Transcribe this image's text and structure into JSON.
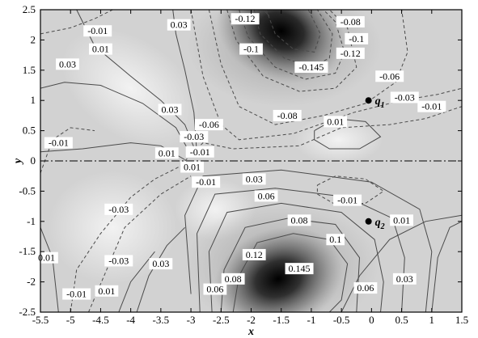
{
  "chart_data": {
    "type": "contour",
    "xlabel": "x",
    "ylabel": "y",
    "xlim": [
      -5.5,
      1.5
    ],
    "ylim": [
      -2.5,
      2.5
    ],
    "xticks": [
      "-5.5",
      "-5",
      "-4.5",
      "-4",
      "-3.5",
      "-3",
      "-2.5",
      "-2",
      "-1.5",
      "-1",
      "-0.5",
      "0",
      "0.5",
      "1",
      "1.5"
    ],
    "xtick_values": [
      -5.5,
      -5,
      -4.5,
      -4,
      -3.5,
      -3,
      -2.5,
      -2,
      -1.5,
      -1,
      -0.5,
      0,
      0.5,
      1,
      1.5
    ],
    "yticks": [
      "2.5",
      "2",
      "1.5",
      "1",
      "0.5",
      "0",
      "-0.5",
      "-1",
      "-1.5",
      "-2",
      "-2.5"
    ],
    "ytick_values": [
      2.5,
      2,
      1.5,
      1,
      0.5,
      0,
      -0.5,
      -1,
      -1.5,
      -2,
      -2.5
    ],
    "symmetry_line_y": 0,
    "extrema": [
      {
        "sign": "negative",
        "x": -1.45,
        "y": 2.25,
        "value": -0.145
      },
      {
        "sign": "positive",
        "x": -1.5,
        "y": -1.95,
        "value": 0.145
      }
    ],
    "points": [
      {
        "symbol": "q",
        "sub": "1",
        "x": -0.05,
        "y": 1.0
      },
      {
        "symbol": "q",
        "sub": "2",
        "x": -0.05,
        "y": -1.0
      }
    ],
    "contour_labels": [
      {
        "text": "-0.12",
        "x": -2.1,
        "y": 2.35
      },
      {
        "text": "-0.08",
        "x": -0.35,
        "y": 2.3
      },
      {
        "text": "-0.1",
        "x": -0.25,
        "y": 2.02
      },
      {
        "text": "-0.12",
        "x": -0.35,
        "y": 1.78
      },
      {
        "text": "-0.01",
        "x": -4.55,
        "y": 2.15
      },
      {
        "text": "0.03",
        "x": -3.2,
        "y": 2.25
      },
      {
        "text": "0.01",
        "x": -4.5,
        "y": 1.85
      },
      {
        "text": "-0.1",
        "x": -2.0,
        "y": 1.85
      },
      {
        "text": "-0.145",
        "x": -1.0,
        "y": 1.55
      },
      {
        "text": "0.03",
        "x": -5.05,
        "y": 1.6
      },
      {
        "text": "-0.06",
        "x": 0.3,
        "y": 1.4
      },
      {
        "text": "-0.03",
        "x": 0.55,
        "y": 1.05
      },
      {
        "text": "-0.01",
        "x": 1.0,
        "y": 0.9
      },
      {
        "text": "0.03",
        "x": -3.35,
        "y": 0.85
      },
      {
        "text": "-0.08",
        "x": -1.4,
        "y": 0.75
      },
      {
        "text": "0.01",
        "x": -0.6,
        "y": 0.65
      },
      {
        "text": "-0.06",
        "x": -2.7,
        "y": 0.6
      },
      {
        "text": "-0.03",
        "x": -2.95,
        "y": 0.4
      },
      {
        "text": "-0.01",
        "x": -5.2,
        "y": 0.3
      },
      {
        "text": "0.01",
        "x": -3.4,
        "y": 0.13
      },
      {
        "text": "-0.01",
        "x": -2.85,
        "y": 0.15
      },
      {
        "text": "0.01",
        "x": -2.98,
        "y": -0.1
      },
      {
        "text": "-0.01",
        "x": -2.75,
        "y": -0.35
      },
      {
        "text": "0.03",
        "x": -1.95,
        "y": -0.3
      },
      {
        "text": "0.06",
        "x": -1.75,
        "y": -0.58
      },
      {
        "text": "-0.03",
        "x": -4.2,
        "y": -0.8
      },
      {
        "text": "-0.01",
        "x": -0.4,
        "y": -0.65
      },
      {
        "text": "0.08",
        "x": -1.2,
        "y": -0.98
      },
      {
        "text": "0.01",
        "x": 0.5,
        "y": -0.98
      },
      {
        "text": "0.1",
        "x": -0.6,
        "y": -1.3
      },
      {
        "text": "0.12",
        "x": -1.95,
        "y": -1.55
      },
      {
        "text": "0.145",
        "x": -1.2,
        "y": -1.78
      },
      {
        "text": "0.01",
        "x": -5.4,
        "y": -1.6
      },
      {
        "text": "-0.03",
        "x": -4.2,
        "y": -1.65
      },
      {
        "text": "0.03",
        "x": -3.5,
        "y": -1.7
      },
      {
        "text": "0.03",
        "x": 0.55,
        "y": -1.95
      },
      {
        "text": "0.06",
        "x": -0.1,
        "y": -2.1
      },
      {
        "text": "0.06",
        "x": -2.6,
        "y": -2.12
      },
      {
        "text": "0.08",
        "x": -2.3,
        "y": -1.95
      },
      {
        "text": "-0.01",
        "x": -4.9,
        "y": -2.2
      },
      {
        "text": "0.01",
        "x": -4.4,
        "y": -2.15
      }
    ]
  }
}
